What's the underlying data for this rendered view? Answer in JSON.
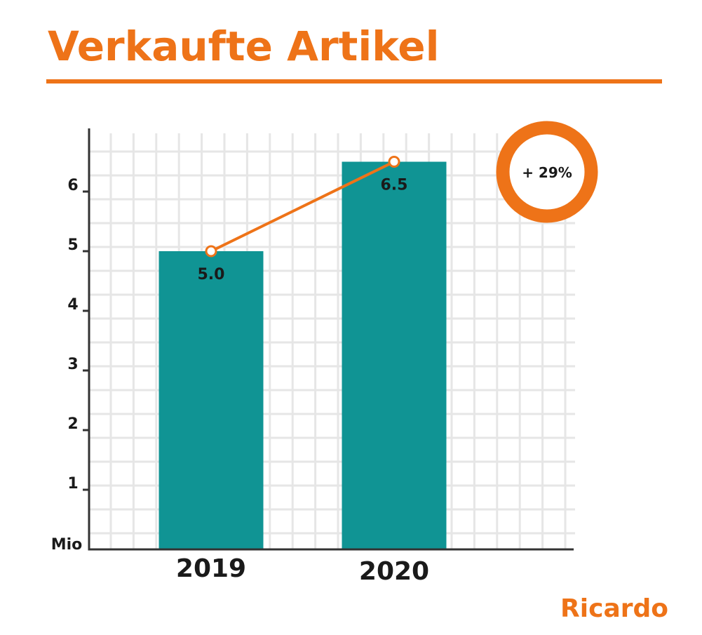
{
  "brand": {
    "name": "Ricardo",
    "accent_color": "#ee7318"
  },
  "chart_data": {
    "type": "bar",
    "title": "Verkaufte Artikel",
    "categories": [
      "2019",
      "2020"
    ],
    "values": [
      5.0,
      6.5
    ],
    "value_labels": [
      "5.0",
      "6.5"
    ],
    "unit_label": "Mio",
    "ylim": [
      0,
      7
    ],
    "y_ticks": [
      1,
      2,
      3,
      4,
      5,
      6
    ],
    "grid": true,
    "overlay_line": true,
    "growth_badge": "+ 29%",
    "colors": {
      "bar": "#109494",
      "line": "#ee7318",
      "grid": "#e6e6e6",
      "axis": "#333333"
    }
  }
}
